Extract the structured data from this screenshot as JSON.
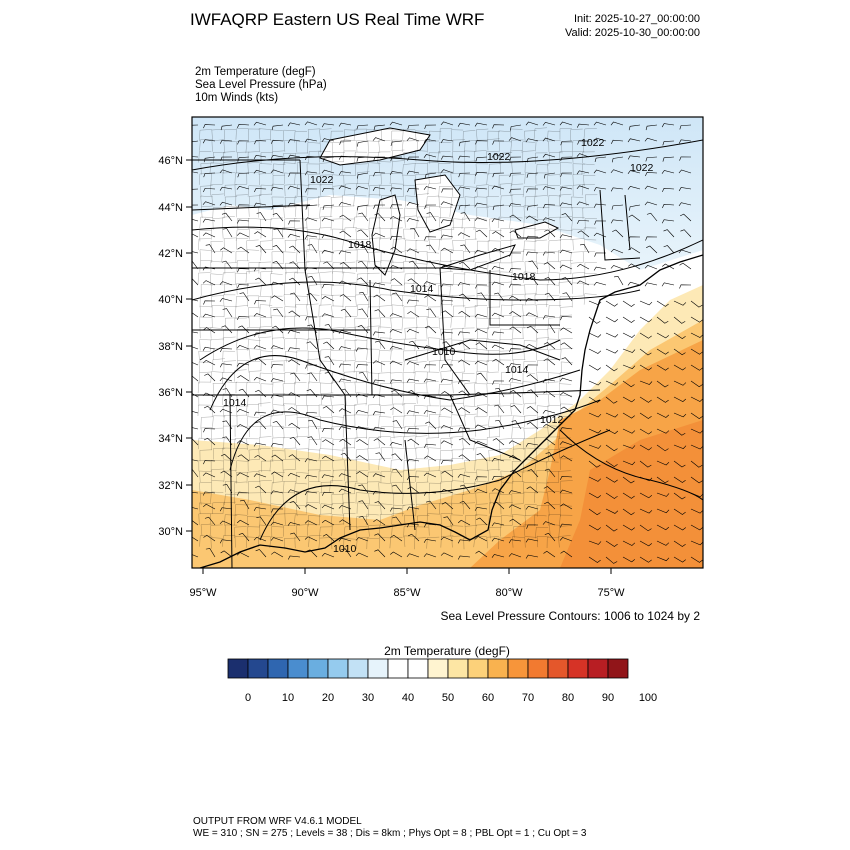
{
  "header": {
    "title": "IWFAQRP Eastern US Real Time WRF",
    "init": "Init: 2025-10-27_00:00:00",
    "valid": "Valid: 2025-10-30_00:00:00"
  },
  "fields": [
    "2m Temperature   (degF)",
    "Sea Level Pressure   (hPa)",
    "10m Winds   (kts)"
  ],
  "map": {
    "lat_labels": [
      "46°N",
      "44°N",
      "42°N",
      "40°N",
      "38°N",
      "36°N",
      "34°N",
      "32°N",
      "30°N"
    ],
    "lon_labels": [
      "95°W",
      "90°W",
      "85°W",
      "80°W",
      "75°W"
    ],
    "isobar_labels": [
      "1022",
      "1022",
      "1022",
      "1022",
      "1018",
      "1018",
      "1014",
      "1014",
      "1010",
      "1014",
      "1012",
      "1010"
    ],
    "contour_note": "Sea Level Pressure Contours: 1006 to 1024 by 2"
  },
  "colorbar": {
    "title": "2m Temperature  (degF)",
    "tick_labels": [
      "0",
      "10",
      "20",
      "30",
      "40",
      "50",
      "60",
      "70",
      "80",
      "90",
      "100"
    ],
    "colors": [
      "#1b2f6e",
      "#24488f",
      "#2f66b0",
      "#4a8dcf",
      "#6aaee0",
      "#95cbee",
      "#c2e1f5",
      "#e6f3fb",
      "#ffffff",
      "#ffffff",
      "#fff4d0",
      "#fde6a4",
      "#fcd17a",
      "#f9b24f",
      "#f7953a",
      "#f27a30",
      "#e4572b",
      "#d63326",
      "#b81e23",
      "#911519"
    ]
  },
  "footer": {
    "line1": "OUTPUT FROM WRF V4.6.1 MODEL",
    "line2": "WE = 310 ; SN = 275 ; Levels = 38 ; Dis = 8km ; Phys Opt = 8 ; PBL Opt = 1 ; Cu Opt = 3"
  }
}
